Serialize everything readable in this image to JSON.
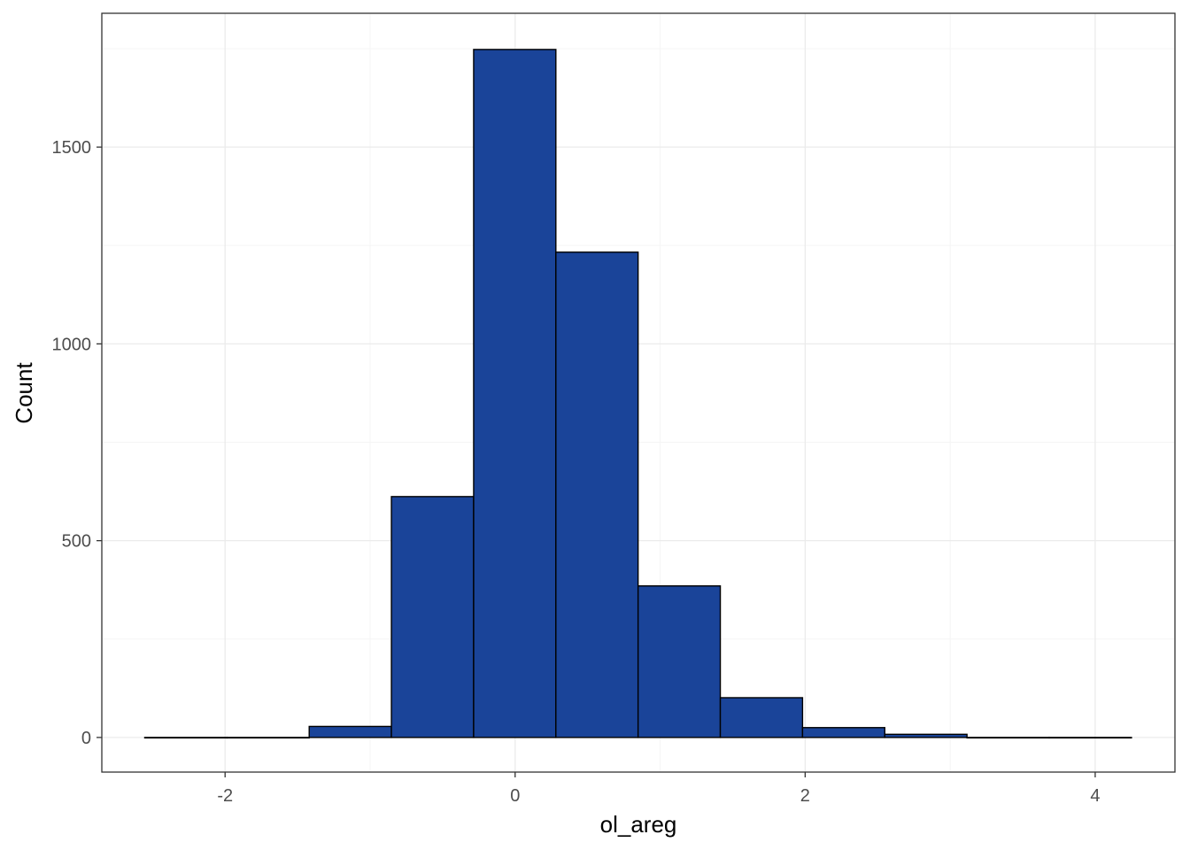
{
  "chart_data": {
    "type": "bar",
    "subtype": "histogram",
    "title": "",
    "xlabel": "ol_areg",
    "ylabel": "Count",
    "xlim": [
      -2.85,
      4.55
    ],
    "ylim": [
      -88,
      1840
    ],
    "x_ticks": [
      -2,
      0,
      2,
      4
    ],
    "x_tick_labels": [
      "-2",
      "0",
      "2",
      "4"
    ],
    "y_ticks": [
      0,
      500,
      1000,
      1500
    ],
    "y_tick_labels": [
      "0",
      "500",
      "1000",
      "1500"
    ],
    "grid": true,
    "legend": "none",
    "bin_width": 0.567,
    "bins": [
      {
        "start": -2.554,
        "end": -1.987,
        "count": 0
      },
      {
        "start": -1.987,
        "end": -1.42,
        "count": 0
      },
      {
        "start": -1.42,
        "end": -0.853,
        "count": 28
      },
      {
        "start": -0.853,
        "end": -0.286,
        "count": 612
      },
      {
        "start": -0.286,
        "end": 0.281,
        "count": 1748
      },
      {
        "start": 0.281,
        "end": 0.848,
        "count": 1233
      },
      {
        "start": 0.848,
        "end": 1.415,
        "count": 385
      },
      {
        "start": 1.415,
        "end": 1.982,
        "count": 101
      },
      {
        "start": 1.982,
        "end": 2.549,
        "count": 25
      },
      {
        "start": 2.549,
        "end": 3.116,
        "count": 8
      },
      {
        "start": 3.116,
        "end": 3.683,
        "count": 0
      },
      {
        "start": 3.683,
        "end": 4.25,
        "count": 0
      }
    ],
    "colors": {
      "bar_fill": "#1a4499",
      "bar_stroke": "#000000",
      "panel_border": "#333333",
      "grid_major": "#ebebeb",
      "grid_minor": "#f5f5f5",
      "tick_label": "#4d4d4d"
    }
  }
}
